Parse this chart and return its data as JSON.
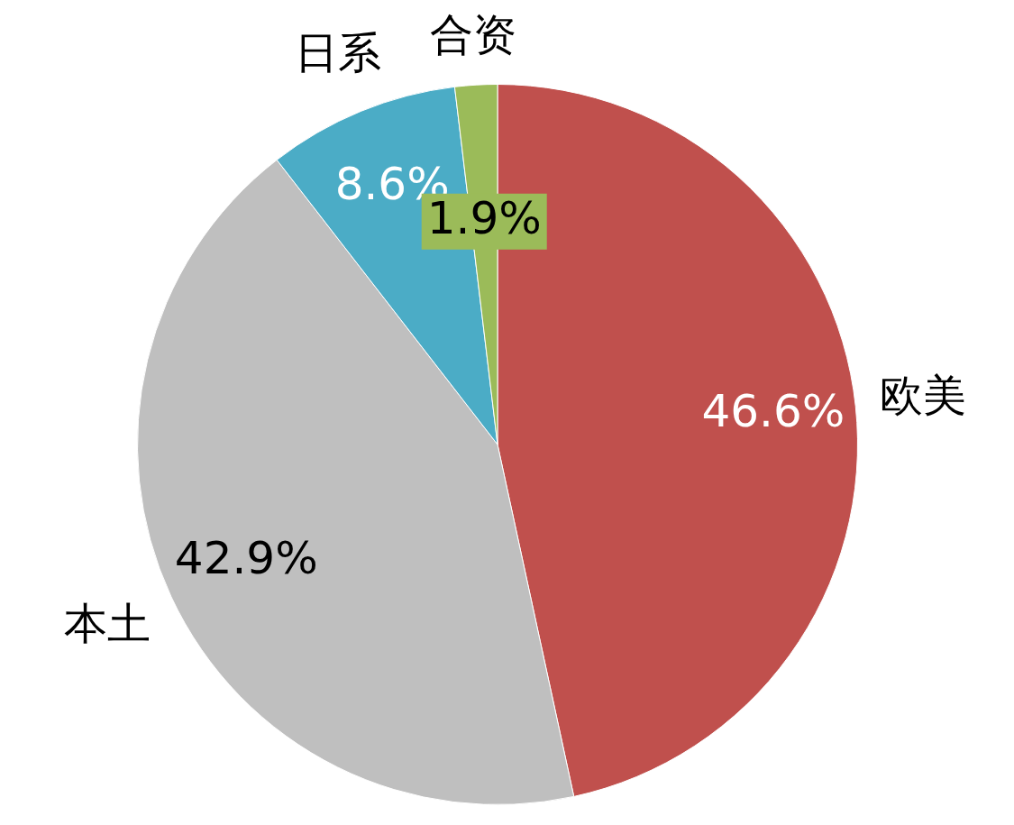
{
  "chart_data": {
    "type": "pie",
    "categories": [
      "欧美",
      "本土",
      "日系",
      "合资"
    ],
    "values": [
      46.6,
      42.9,
      8.6,
      1.9
    ],
    "colors": [
      "#c0504d",
      "#bfbfbf",
      "#4bacc6",
      "#9bbb59"
    ],
    "value_labels": [
      "46.6%",
      "42.9%",
      "8.6%",
      "1.9%"
    ]
  }
}
